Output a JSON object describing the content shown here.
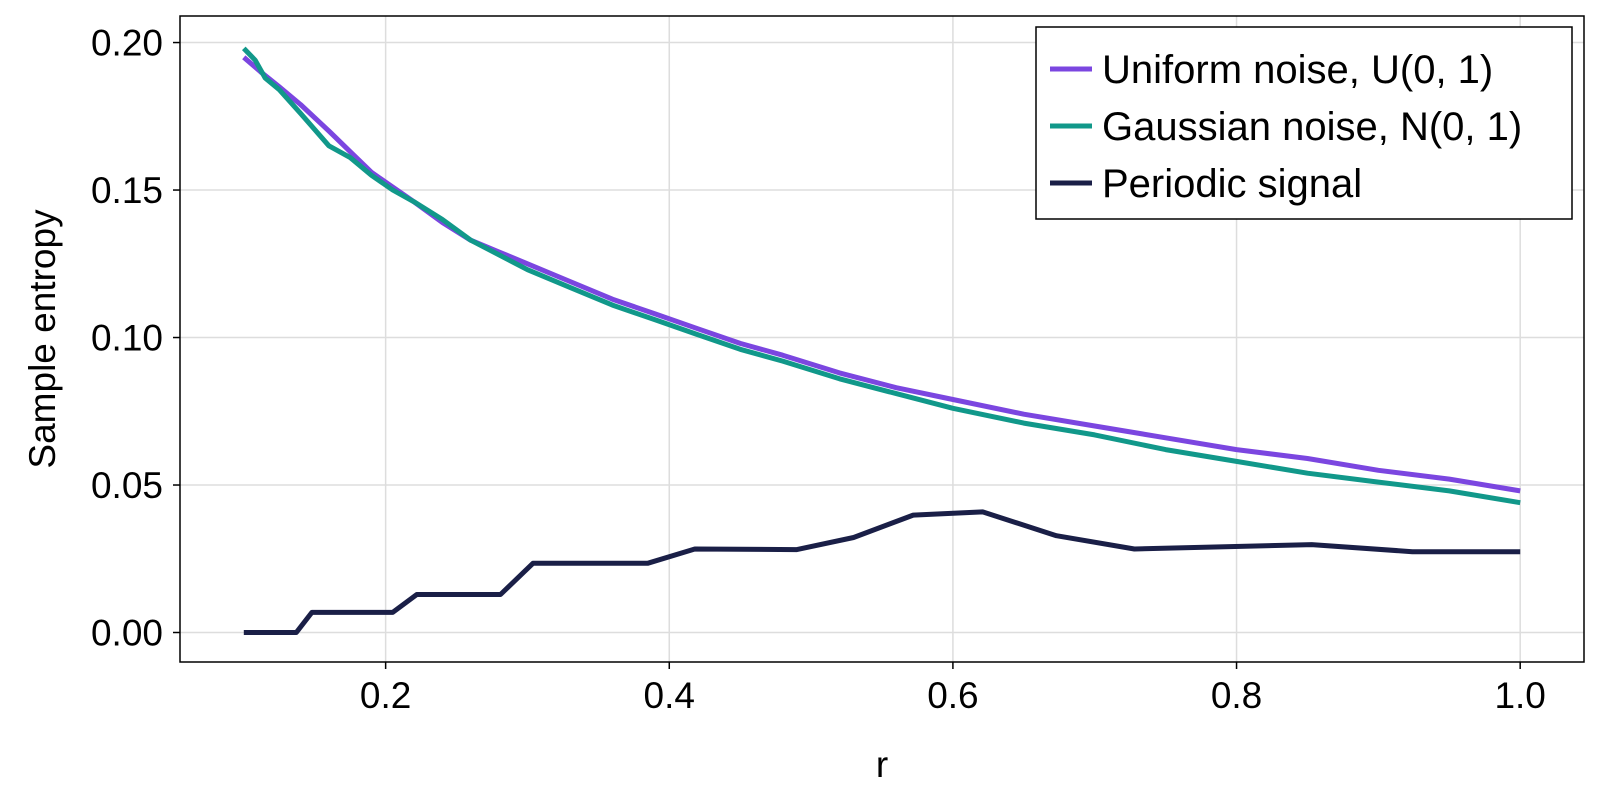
{
  "chart_data": {
    "type": "line",
    "title": "",
    "xlabel": "r",
    "ylabel": "Sample entropy",
    "xlim": [
      0.055,
      1.045
    ],
    "ylim": [
      -0.01,
      0.209
    ],
    "grid": true,
    "legend_position": "top-right",
    "x_ticks": [
      {
        "value": 0.2,
        "label": "0.2"
      },
      {
        "value": 0.4,
        "label": "0.4"
      },
      {
        "value": 0.6,
        "label": "0.6"
      },
      {
        "value": 0.8,
        "label": "0.8"
      },
      {
        "value": 1.0,
        "label": "1.0"
      }
    ],
    "y_ticks": [
      {
        "value": 0.0,
        "label": "0.00"
      },
      {
        "value": 0.05,
        "label": "0.05"
      },
      {
        "value": 0.1,
        "label": "0.10"
      },
      {
        "value": 0.15,
        "label": "0.15"
      },
      {
        "value": 0.2,
        "label": "0.20"
      }
    ],
    "series": [
      {
        "name": "Uniform noise, U(0, 1)",
        "color": "#7b46e0",
        "x": [
          0.1,
          0.112,
          0.125,
          0.14,
          0.16,
          0.175,
          0.19,
          0.205,
          0.22,
          0.24,
          0.26,
          0.28,
          0.3,
          0.33,
          0.36,
          0.39,
          0.42,
          0.45,
          0.48,
          0.52,
          0.56,
          0.6,
          0.65,
          0.7,
          0.75,
          0.8,
          0.85,
          0.9,
          0.95,
          1.0
        ],
        "y": [
          0.195,
          0.19,
          0.185,
          0.179,
          0.17,
          0.163,
          0.156,
          0.151,
          0.146,
          0.139,
          0.133,
          0.129,
          0.125,
          0.119,
          0.113,
          0.108,
          0.103,
          0.098,
          0.094,
          0.088,
          0.083,
          0.079,
          0.074,
          0.07,
          0.066,
          0.062,
          0.059,
          0.055,
          0.052,
          0.048
        ]
      },
      {
        "name": "Gaussian noise, N(0, 1)",
        "color": "#11988a",
        "x": [
          0.1,
          0.108,
          0.115,
          0.125,
          0.14,
          0.16,
          0.175,
          0.19,
          0.205,
          0.22,
          0.24,
          0.26,
          0.28,
          0.3,
          0.33,
          0.36,
          0.39,
          0.42,
          0.45,
          0.48,
          0.52,
          0.56,
          0.6,
          0.65,
          0.7,
          0.75,
          0.8,
          0.85,
          0.9,
          0.95,
          1.0
        ],
        "y": [
          0.198,
          0.194,
          0.188,
          0.184,
          0.176,
          0.165,
          0.161,
          0.155,
          0.15,
          0.146,
          0.14,
          0.133,
          0.128,
          0.123,
          0.117,
          0.111,
          0.106,
          0.101,
          0.096,
          0.092,
          0.086,
          0.081,
          0.076,
          0.071,
          0.067,
          0.062,
          0.058,
          0.054,
          0.051,
          0.048,
          0.044
        ]
      },
      {
        "name": "Periodic signal",
        "color": "#1a1f47",
        "x": [
          0.1,
          0.137,
          0.148,
          0.205,
          0.222,
          0.281,
          0.304,
          0.385,
          0.418,
          0.49,
          0.53,
          0.572,
          0.621,
          0.673,
          0.728,
          0.853,
          0.924,
          1.0
        ],
        "y": [
          0.0,
          0.0,
          0.0068,
          0.0068,
          0.0129,
          0.0129,
          0.0235,
          0.0235,
          0.0283,
          0.0281,
          0.0322,
          0.0398,
          0.0409,
          0.0328,
          0.0283,
          0.0298,
          0.0274,
          0.0274
        ]
      }
    ]
  }
}
